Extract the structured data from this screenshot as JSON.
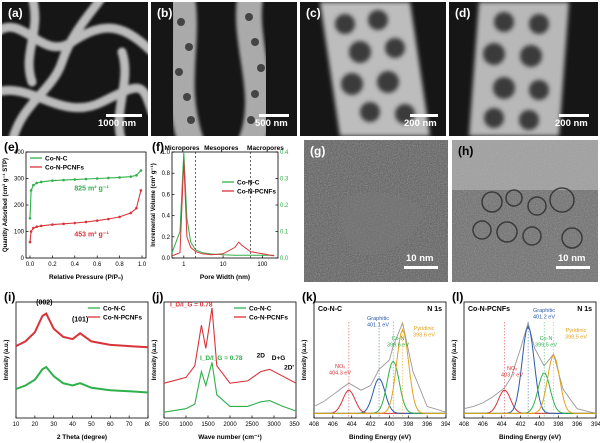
{
  "panels": {
    "a": {
      "label": "(a)",
      "scale": "1000 nm"
    },
    "b": {
      "label": "(b)",
      "scale": "500 nm"
    },
    "c": {
      "label": "(c)",
      "scale": "200 nm"
    },
    "d": {
      "label": "(d)",
      "scale": "200 nm"
    },
    "e": {
      "label": "(e)"
    },
    "f": {
      "label": "(f)"
    },
    "g": {
      "label": "(g)",
      "scale": "10 nm"
    },
    "h": {
      "label": "(h)",
      "scale": "10 nm"
    },
    "i": {
      "label": "(i)"
    },
    "j": {
      "label": "(j)"
    },
    "k": {
      "label": "(k)"
    },
    "l": {
      "label": "(l)"
    }
  },
  "colors": {
    "co_n_c": "#2fb04a",
    "co_n_pcnfs": "#d9333a"
  },
  "chart_data": [
    {
      "id": "e",
      "type": "line",
      "xlabel": "Relative Pressure (P/P₀)",
      "ylabel": "Quantity Adsorbed (cm³ g⁻¹ STP)",
      "xlim": [
        0,
        1
      ],
      "ylim": [
        0,
        400
      ],
      "xticks": [
        "0.0",
        "0.2",
        "0.4",
        "0.6",
        "0.8",
        "1.0"
      ],
      "yticks": [
        "0",
        "100",
        "200",
        "300",
        "400"
      ],
      "legend": [
        "Co-N-C",
        "Co-N-PCNFs"
      ],
      "annotations": [
        "825 m² g⁻¹",
        "453 m² g⁻¹"
      ],
      "series": [
        {
          "name": "Co-N-C",
          "x": [
            0.0,
            0.01,
            0.03,
            0.06,
            0.1,
            0.2,
            0.3,
            0.4,
            0.5,
            0.6,
            0.7,
            0.8,
            0.9,
            0.95,
            0.99
          ],
          "y": [
            150,
            255,
            275,
            283,
            287,
            292,
            294,
            296,
            298,
            300,
            302,
            304,
            307,
            312,
            330
          ]
        },
        {
          "name": "Co-N-PCNFs",
          "x": [
            0.0,
            0.01,
            0.03,
            0.06,
            0.1,
            0.2,
            0.3,
            0.4,
            0.5,
            0.6,
            0.7,
            0.8,
            0.9,
            0.95,
            0.99
          ],
          "y": [
            60,
            100,
            113,
            118,
            121,
            126,
            129,
            132,
            136,
            141,
            147,
            155,
            170,
            188,
            255
          ]
        }
      ]
    },
    {
      "id": "f",
      "type": "line",
      "xlabel": "Pore Width (nm)",
      "ylabel_left": "Incremental Volume (cm³ g⁻¹)",
      "y_left_lim": [
        0,
        1.0
      ],
      "y_right_lim": [
        0,
        0.4
      ],
      "xscale": "log",
      "xticks": [
        "1",
        "10",
        "100"
      ],
      "yticks_left": [
        "0.0",
        "0.2",
        "0.4",
        "0.6",
        "0.8",
        "1.0"
      ],
      "yticks_right": [
        "0.0",
        "0.1",
        "0.2",
        "0.3",
        "0.4"
      ],
      "regions": [
        "Micropores",
        "Mesopores",
        "Macropores"
      ],
      "legend": [
        "Co-N-C",
        "Co-N-PCNFs"
      ],
      "series": [
        {
          "name": "Co-N-C",
          "axis": "right",
          "x": [
            0.5,
            0.8,
            1.0,
            1.2,
            1.5,
            2,
            3,
            5,
            10,
            20,
            50,
            100,
            200
          ],
          "y": [
            0.02,
            0.1,
            0.4,
            0.15,
            0.06,
            0.03,
            0.02,
            0.015,
            0.012,
            0.01,
            0.01,
            0.01,
            0.01
          ]
        },
        {
          "name": "Co-N-PCNFs",
          "axis": "left",
          "x": [
            0.5,
            0.8,
            1.0,
            1.2,
            1.5,
            2,
            3,
            5,
            10,
            20,
            25,
            30,
            50,
            100,
            200
          ],
          "y": [
            0.02,
            0.05,
            0.92,
            0.2,
            0.1,
            0.06,
            0.04,
            0.03,
            0.04,
            0.1,
            0.15,
            0.12,
            0.06,
            0.04,
            0.02
          ]
        }
      ]
    },
    {
      "id": "i",
      "type": "line",
      "xlabel": "2 Theta (degree)",
      "ylabel": "Intensity (a.u.)",
      "xlim": [
        10,
        80
      ],
      "xticks": [
        "10",
        "20",
        "30",
        "40",
        "50",
        "60",
        "70",
        "80"
      ],
      "legend": [
        "Co-N-C",
        "Co-N-PCNFs"
      ],
      "annotations": [
        "(002)",
        "(101)"
      ],
      "series": [
        {
          "name": "Co-N-C",
          "x": [
            10,
            15,
            20,
            24,
            26,
            30,
            35,
            40,
            44,
            50,
            60,
            70,
            80
          ],
          "y": [
            0.25,
            0.28,
            0.33,
            0.42,
            0.44,
            0.36,
            0.3,
            0.28,
            0.3,
            0.26,
            0.24,
            0.23,
            0.22
          ]
        },
        {
          "name": "Co-N-PCNFs",
          "x": [
            10,
            15,
            20,
            24,
            26,
            30,
            35,
            40,
            44,
            50,
            60,
            70,
            80
          ],
          "y": [
            0.62,
            0.66,
            0.74,
            0.88,
            0.9,
            0.77,
            0.7,
            0.68,
            0.73,
            0.66,
            0.63,
            0.62,
            0.61
          ]
        }
      ]
    },
    {
      "id": "j",
      "type": "line",
      "xlabel": "Wave number (cm⁻¹)",
      "ylabel": "Intensity (a.u.)",
      "xlim": [
        500,
        3500
      ],
      "xticks": [
        "500",
        "1000",
        "1500",
        "2000",
        "2500",
        "3000",
        "3500"
      ],
      "legend": [
        "Co-N-C",
        "Co-N-PCNFs"
      ],
      "annotations": [
        "I_D/I_G = 0.78",
        "I_D/I_G = 0.78",
        "2D",
        "D+G",
        "2D'"
      ],
      "series": [
        {
          "name": "Co-N-C",
          "x": [
            500,
            1000,
            1200,
            1350,
            1450,
            1590,
            1700,
            2000,
            2400,
            2700,
            2900,
            3200,
            3500
          ],
          "y": [
            0.05,
            0.08,
            0.12,
            0.4,
            0.28,
            0.48,
            0.2,
            0.1,
            0.1,
            0.14,
            0.15,
            0.1,
            0.06
          ]
        },
        {
          "name": "Co-N-PCNFs",
          "x": [
            500,
            1000,
            1200,
            1350,
            1450,
            1590,
            1700,
            2000,
            2400,
            2700,
            2900,
            3200,
            3500
          ],
          "y": [
            0.3,
            0.35,
            0.45,
            0.8,
            0.6,
            0.95,
            0.45,
            0.3,
            0.32,
            0.4,
            0.42,
            0.36,
            0.3
          ]
        }
      ]
    },
    {
      "id": "k",
      "type": "line",
      "xlabel": "Binding Energy (eV)",
      "ylabel": "Intensity (a.u.)",
      "xlim": [
        408,
        394
      ],
      "xticks": [
        "408",
        "406",
        "404",
        "402",
        "400",
        "398",
        "396",
        "394"
      ],
      "title": "Co-N-C",
      "corner": "N 1s",
      "annotations": [
        "NOₓ 404.3 eV",
        "Graphitic 401.1 eV",
        "Co-N 399.6 eV",
        "Pyridinic 398.6 eV"
      ],
      "series": [
        {
          "name": "Measured",
          "x": [
            408,
            407,
            406,
            405,
            404.3,
            403,
            402,
            401.1,
            400,
            399.6,
            398.6,
            397.5,
            396,
            394
          ],
          "y": [
            0.1,
            0.14,
            0.2,
            0.26,
            0.3,
            0.24,
            0.28,
            0.42,
            0.5,
            0.62,
            0.82,
            0.4,
            0.1,
            0.05
          ]
        }
      ]
    },
    {
      "id": "l",
      "type": "line",
      "xlabel": "Binding Energy (eV)",
      "ylabel": "Intensity (a.u.)",
      "xlim": [
        408,
        394
      ],
      "xticks": [
        "408",
        "406",
        "404",
        "402",
        "400",
        "398",
        "396",
        "394"
      ],
      "title": "Co-N-PCNFs",
      "corner": "N 1s",
      "annotations": [
        "NOₓ 403.7 eV",
        "Graphitic 401.2 eV",
        "Co-N 399.5 eV",
        "Pyridinic 398.5 eV"
      ],
      "series": [
        {
          "name": "Measured",
          "x": [
            408,
            407,
            406,
            405,
            404,
            403.7,
            403,
            402,
            401.2,
            400.5,
            399.5,
            398.5,
            397.5,
            396,
            394
          ],
          "y": [
            0.08,
            0.1,
            0.13,
            0.18,
            0.24,
            0.26,
            0.35,
            0.6,
            0.82,
            0.6,
            0.45,
            0.55,
            0.25,
            0.08,
            0.04
          ]
        }
      ]
    }
  ]
}
